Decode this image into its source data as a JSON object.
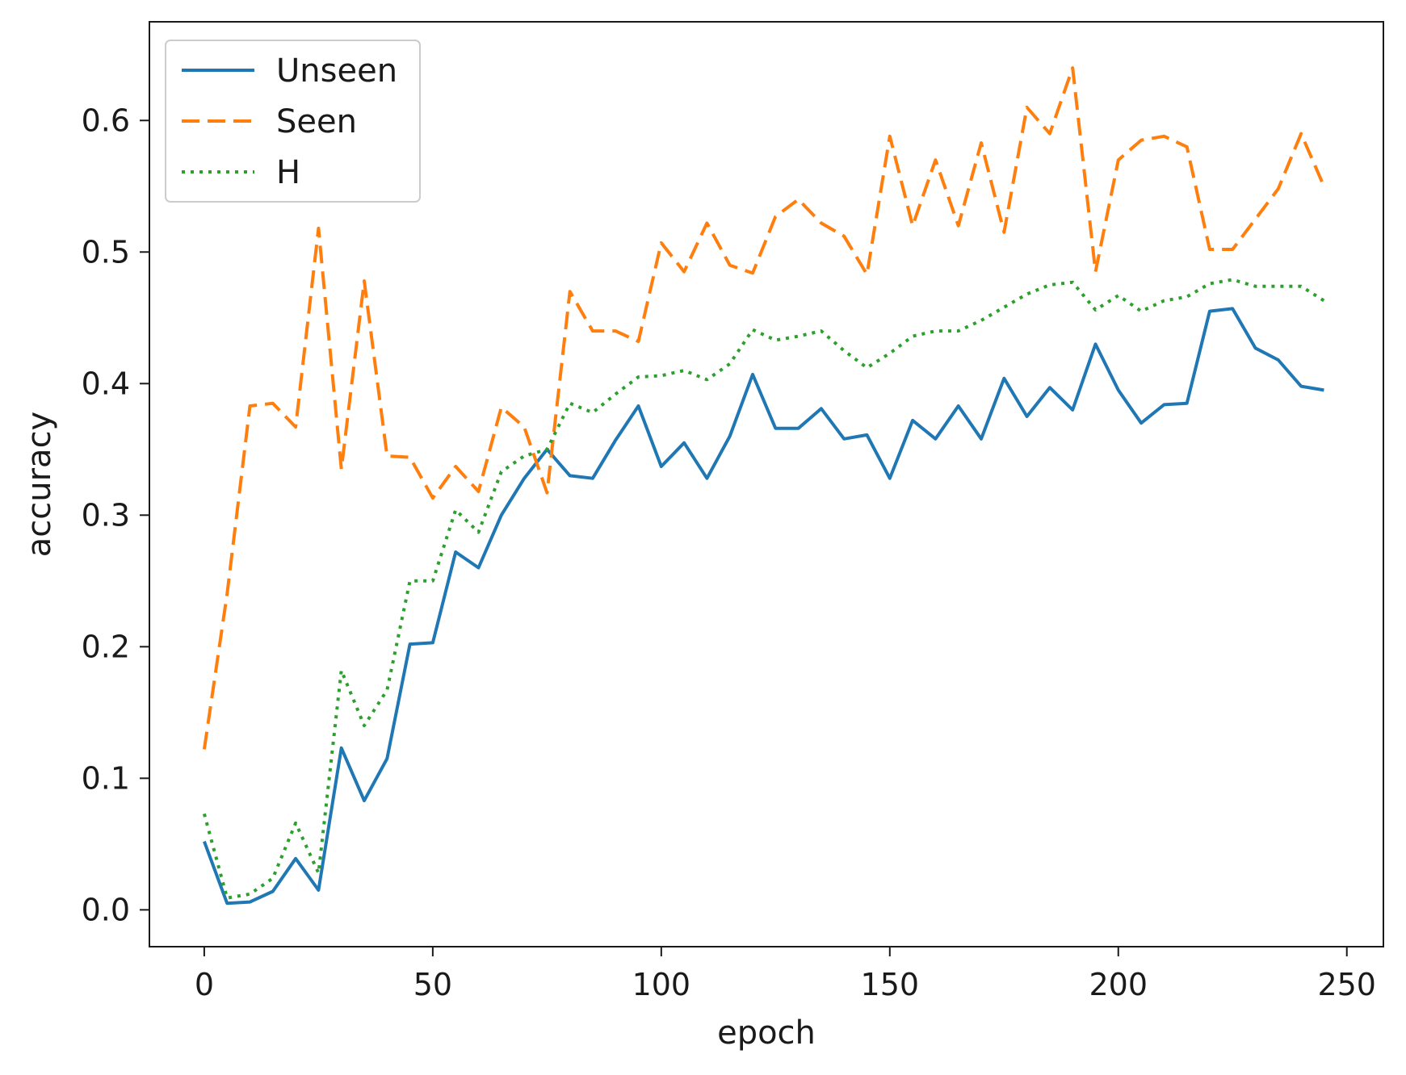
{
  "chart_data": {
    "type": "line",
    "xlabel": "epoch",
    "ylabel": "accuracy",
    "xlim": [
      -12,
      258
    ],
    "ylim": [
      -0.028,
      0.675
    ],
    "xticks": [
      0,
      50,
      100,
      150,
      200,
      250
    ],
    "xtick_labels": [
      "0",
      "50",
      "100",
      "150",
      "200",
      "250"
    ],
    "yticks": [
      0.0,
      0.1,
      0.2,
      0.3,
      0.4,
      0.5,
      0.6
    ],
    "ytick_labels": [
      "0.0",
      "0.1",
      "0.2",
      "0.3",
      "0.4",
      "0.5",
      "0.6"
    ],
    "grid": false,
    "legend_position": "top-left",
    "x": [
      0,
      5,
      10,
      15,
      20,
      25,
      30,
      35,
      40,
      45,
      50,
      55,
      60,
      65,
      70,
      75,
      80,
      85,
      90,
      95,
      100,
      105,
      110,
      115,
      120,
      125,
      130,
      135,
      140,
      145,
      150,
      155,
      160,
      165,
      170,
      175,
      180,
      185,
      190,
      195,
      200,
      205,
      210,
      215,
      220,
      225,
      230,
      235,
      240,
      245
    ],
    "series": [
      {
        "name": "Unseen",
        "color": "#1f77b4",
        "style": "solid",
        "values": [
          0.052,
          0.005,
          0.006,
          0.014,
          0.039,
          0.015,
          0.123,
          0.083,
          0.115,
          0.202,
          0.203,
          0.272,
          0.26,
          0.3,
          0.328,
          0.35,
          0.33,
          0.328,
          0.357,
          0.383,
          0.337,
          0.355,
          0.328,
          0.36,
          0.407,
          0.366,
          0.366,
          0.381,
          0.358,
          0.361,
          0.328,
          0.372,
          0.358,
          0.383,
          0.358,
          0.404,
          0.375,
          0.397,
          0.38,
          0.43,
          0.395,
          0.37,
          0.384,
          0.385,
          0.455,
          0.457,
          0.427,
          0.418,
          0.398,
          0.395
        ]
      },
      {
        "name": "Seen",
        "color": "#ff7f0e",
        "style": "dashed",
        "values": [
          0.122,
          0.24,
          0.383,
          0.385,
          0.367,
          0.518,
          0.335,
          0.478,
          0.345,
          0.344,
          0.313,
          0.337,
          0.318,
          0.382,
          0.367,
          0.317,
          0.47,
          0.44,
          0.44,
          0.432,
          0.507,
          0.485,
          0.522,
          0.49,
          0.484,
          0.527,
          0.54,
          0.522,
          0.512,
          0.483,
          0.588,
          0.52,
          0.57,
          0.52,
          0.583,
          0.515,
          0.61,
          0.59,
          0.64,
          0.485,
          0.57,
          0.585,
          0.588,
          0.58,
          0.502,
          0.502,
          0.525,
          0.548,
          0.59,
          0.55
        ]
      },
      {
        "name": "H",
        "color": "#2ca02c",
        "style": "dotted",
        "values": [
          0.073,
          0.009,
          0.012,
          0.024,
          0.066,
          0.028,
          0.182,
          0.14,
          0.167,
          0.25,
          0.25,
          0.304,
          0.287,
          0.333,
          0.345,
          0.35,
          0.385,
          0.378,
          0.392,
          0.405,
          0.406,
          0.41,
          0.403,
          0.415,
          0.441,
          0.433,
          0.436,
          0.44,
          0.425,
          0.412,
          0.423,
          0.436,
          0.44,
          0.44,
          0.448,
          0.458,
          0.468,
          0.475,
          0.477,
          0.456,
          0.467,
          0.455,
          0.463,
          0.466,
          0.476,
          0.479,
          0.474,
          0.474,
          0.474,
          0.463
        ]
      }
    ]
  }
}
